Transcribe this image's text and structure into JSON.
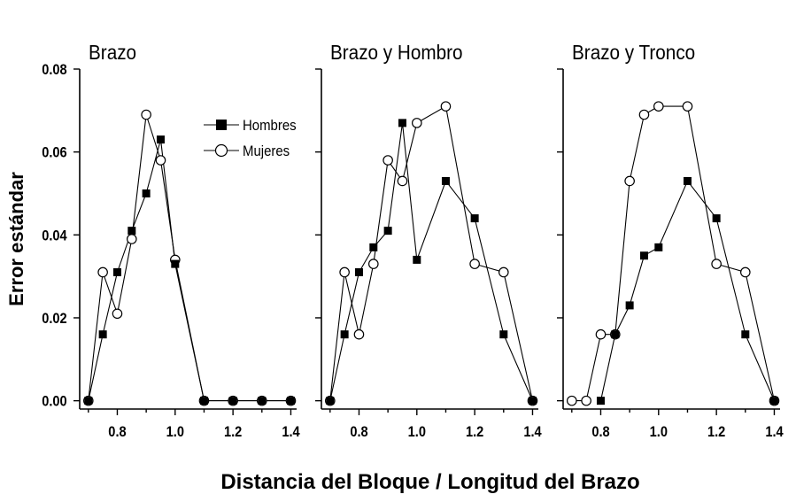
{
  "chart_data": {
    "type": "line",
    "xlabel": "Distancia del Bloque / Longitud del Brazo",
    "ylabel": "Error estándar",
    "xlim": [
      0.67,
      1.42
    ],
    "ylim": [
      -0.002,
      0.08
    ],
    "x_ticks": [
      "0.8",
      "1.0",
      "1.2",
      "1.4"
    ],
    "y_ticks": [
      "0.00",
      "0.02",
      "0.04",
      "0.06",
      "0.08"
    ],
    "legend": {
      "placement": "upper-right of first panel",
      "entries": [
        {
          "label": "Hombres",
          "marker": "filled-square"
        },
        {
          "label": "Mujeres",
          "marker": "open-circle"
        }
      ]
    },
    "panels": [
      {
        "title": "Brazo",
        "series": [
          {
            "name": "Hombres",
            "marker": "square",
            "x": [
              0.7,
              0.75,
              0.8,
              0.85,
              0.9,
              0.95,
              1.0,
              1.1,
              1.2,
              1.3,
              1.4
            ],
            "y": [
              0.0,
              0.016,
              0.031,
              0.041,
              0.05,
              0.063,
              0.033,
              0.0,
              0.0,
              0.0,
              0.0
            ]
          },
          {
            "name": "Mujeres",
            "marker": "circle",
            "x": [
              0.7,
              0.75,
              0.8,
              0.85,
              0.9,
              0.95,
              1.0,
              1.1,
              1.2,
              1.3,
              1.4
            ],
            "y": [
              0.0,
              0.031,
              0.021,
              0.039,
              0.069,
              0.058,
              0.034,
              0.0,
              0.0,
              0.0,
              0.0
            ]
          }
        ]
      },
      {
        "title": "Brazo y Hombro",
        "series": [
          {
            "name": "Hombres",
            "marker": "square",
            "x": [
              0.7,
              0.75,
              0.8,
              0.85,
              0.9,
              0.95,
              1.0,
              1.1,
              1.2,
              1.3,
              1.4
            ],
            "y": [
              0.0,
              0.016,
              0.031,
              0.037,
              0.041,
              0.067,
              0.034,
              0.053,
              0.044,
              0.016,
              0.0
            ]
          },
          {
            "name": "Mujeres",
            "marker": "circle",
            "x": [
              0.7,
              0.75,
              0.8,
              0.85,
              0.9,
              0.95,
              1.0,
              1.1,
              1.2,
              1.3,
              1.4
            ],
            "y": [
              0.0,
              0.031,
              0.016,
              0.033,
              0.058,
              0.053,
              0.067,
              0.071,
              0.033,
              0.031,
              0.0
            ]
          }
        ]
      },
      {
        "title": "Brazo y Tronco",
        "series": [
          {
            "name": "Hombres",
            "marker": "square",
            "x": [
              0.8,
              0.85,
              0.9,
              0.95,
              1.0,
              1.1,
              1.2,
              1.3,
              1.4
            ],
            "y": [
              0.0,
              0.016,
              0.023,
              0.035,
              0.037,
              0.053,
              0.044,
              0.016,
              0.0
            ]
          },
          {
            "name": "Mujeres",
            "marker": "circle",
            "x": [
              0.7,
              0.75,
              0.8,
              0.85,
              0.9,
              0.95,
              1.0,
              1.1,
              1.2,
              1.3,
              1.4
            ],
            "y": [
              0.0,
              0.0,
              0.016,
              0.016,
              0.053,
              0.069,
              0.071,
              0.071,
              0.033,
              0.031,
              0.0
            ]
          }
        ]
      }
    ]
  }
}
